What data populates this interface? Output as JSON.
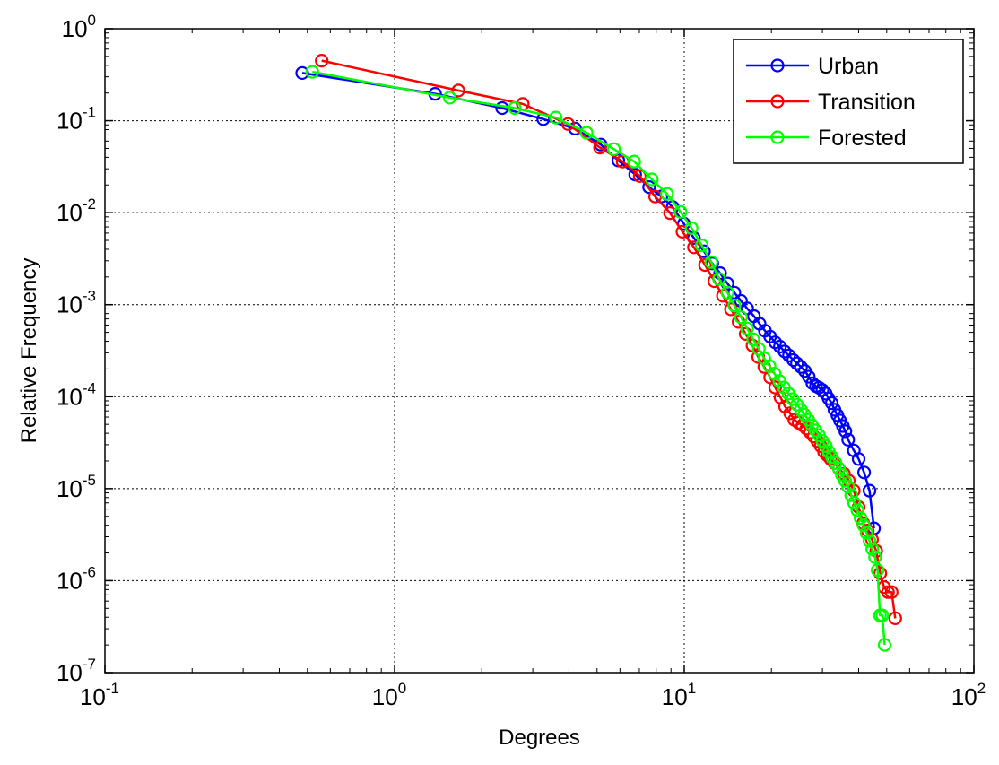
{
  "chart_data": {
    "type": "line",
    "xlabel": "Degrees",
    "ylabel": "Relative Frequency",
    "xscale": "log",
    "yscale": "log",
    "xlim": [
      0.1,
      100
    ],
    "ylim": [
      1e-07,
      1
    ],
    "grid": true,
    "legend_position": "top-right",
    "x_ticks": [
      {
        "base": "10",
        "exp": "-1",
        "value": 0.1
      },
      {
        "base": "10",
        "exp": "0",
        "value": 1
      },
      {
        "base": "10",
        "exp": "1",
        "value": 10
      },
      {
        "base": "10",
        "exp": "2",
        "value": 100
      }
    ],
    "y_ticks": [
      {
        "base": "10",
        "exp": "0",
        "value": 1
      },
      {
        "base": "10",
        "exp": "-1",
        "value": 0.1
      },
      {
        "base": "10",
        "exp": "-2",
        "value": 0.01
      },
      {
        "base": "10",
        "exp": "-3",
        "value": 0.001
      },
      {
        "base": "10",
        "exp": "-4",
        "value": 0.0001
      },
      {
        "base": "10",
        "exp": "-5",
        "value": 1e-05
      },
      {
        "base": "10",
        "exp": "-6",
        "value": 1e-06
      },
      {
        "base": "10",
        "exp": "-7",
        "value": 1e-07
      }
    ],
    "series": [
      {
        "name": "Urban",
        "color": "#0000ff",
        "x": [
          0.48,
          1.38,
          2.35,
          3.26,
          4.2,
          5.15,
          5.92,
          6.77,
          7.56,
          8.34,
          9.12,
          9.97,
          10.8,
          11.7,
          12.5,
          13.3,
          14.1,
          14.9,
          15.7,
          16.5,
          17.4,
          18.2,
          19.0,
          19.8,
          20.6,
          21.4,
          22.2,
          23.0,
          23.8,
          24.5,
          25.3,
          26.1,
          26.9,
          27.7,
          28.5,
          29.2,
          30.0,
          30.8,
          31.5,
          32.3,
          33.0,
          33.8,
          34.5,
          35.3,
          36.0,
          36.8,
          38.5,
          40.0,
          41.8,
          43.6,
          45.2
        ],
        "y": [
          0.33,
          0.196,
          0.137,
          0.104,
          0.082,
          0.055,
          0.037,
          0.026,
          0.019,
          0.015,
          0.0115,
          0.0076,
          0.0053,
          0.0038,
          0.0028,
          0.0022,
          0.0017,
          0.00135,
          0.0011,
          0.00091,
          0.00075,
          0.00062,
          0.00052,
          0.00045,
          0.00039,
          0.00035,
          0.00031,
          0.00028,
          0.00025,
          0.00023,
          0.00021,
          0.00019,
          0.000165,
          0.00014,
          0.00013,
          0.000125,
          0.000118,
          0.000108,
          9.55e-05,
          8.5e-05,
          7.2e-05,
          6.3e-05,
          5.5e-05,
          4.8e-05,
          4.2e-05,
          3.4e-05,
          2.6e-05,
          2.1e-05,
          1.5e-05,
          9.5e-06,
          3.7e-06
        ]
      },
      {
        "name": "Transition",
        "color": "#ff0000",
        "x": [
          0.56,
          1.66,
          2.77,
          3.97,
          5.12,
          6.13,
          7.02,
          7.93,
          8.93,
          9.86,
          10.8,
          11.8,
          12.7,
          13.6,
          14.5,
          15.4,
          16.3,
          17.2,
          18.0,
          18.9,
          19.8,
          20.6,
          21.5,
          22.3,
          23.2,
          24.0,
          24.8,
          25.6,
          26.4,
          27.2,
          28.0,
          28.8,
          29.6,
          30.4,
          31.2,
          32.0,
          33.0,
          34.2,
          35.6,
          37.0,
          38.5,
          40.0,
          41.5,
          43.0,
          44.5,
          46.0,
          47.5,
          49.0,
          50.5,
          52.0,
          53.5
        ],
        "y": [
          0.45,
          0.213,
          0.152,
          0.092,
          0.051,
          0.036,
          0.025,
          0.015,
          0.0099,
          0.0062,
          0.0042,
          0.0027,
          0.0018,
          0.00125,
          0.00089,
          0.00065,
          0.00048,
          0.00036,
          0.00027,
          0.00021,
          0.000162,
          0.000126,
          9.8e-05,
          7.8e-05,
          6.6e-05,
          5.6e-05,
          5.2e-05,
          4.9e-05,
          4.5e-05,
          4.1e-05,
          3.7e-05,
          3.3e-05,
          2.9e-05,
          2.5e-05,
          2.3e-05,
          2.1e-05,
          1.9e-05,
          1.65e-05,
          1.45e-05,
          1.22e-05,
          9.5e-06,
          6.3e-06,
          4.2e-06,
          3.5e-06,
          2.8e-06,
          2.1e-06,
          1.2e-06,
          8.5e-07,
          7.5e-07,
          7.5e-07,
          3.9e-07
        ]
      },
      {
        "name": "Forested",
        "color": "#00ff00",
        "x": [
          0.52,
          1.55,
          2.6,
          3.6,
          4.6,
          5.72,
          6.72,
          7.73,
          8.72,
          9.72,
          10.6,
          11.5,
          12.4,
          13.2,
          14.1,
          14.9,
          15.7,
          16.5,
          17.3,
          18.1,
          18.9,
          19.7,
          20.5,
          21.3,
          22.1,
          22.9,
          23.7,
          24.5,
          25.3,
          26.0,
          26.8,
          27.6,
          28.4,
          29.2,
          30.0,
          30.8,
          31.6,
          32.4,
          33.3,
          34.2,
          35.0,
          35.9,
          36.8,
          37.7,
          38.6,
          39.6,
          40.6,
          41.6,
          42.6,
          43.6,
          44.6,
          45.6,
          46.5,
          47.4,
          48.3,
          49.2
        ],
        "y": [
          0.34,
          0.178,
          0.137,
          0.108,
          0.074,
          0.049,
          0.036,
          0.023,
          0.016,
          0.0102,
          0.0068,
          0.0044,
          0.0029,
          0.0019,
          0.00135,
          0.00098,
          0.00073,
          0.00055,
          0.00042,
          0.00033,
          0.00026,
          0.000215,
          0.000178,
          0.000148,
          0.000126,
          0.000108,
          9.4e-05,
          8.2e-05,
          7.2e-05,
          6.4e-05,
          5.6e-05,
          4.9e-05,
          4.3e-05,
          3.8e-05,
          3.3e-05,
          2.9e-05,
          2.5e-05,
          2.2e-05,
          1.9e-05,
          1.65e-05,
          1.42e-05,
          1.22e-05,
          1.05e-05,
          8.5e-06,
          7e-06,
          5.8e-06,
          4.8e-06,
          4e-06,
          3.3e-06,
          2.7e-06,
          2.2e-06,
          1.8e-06,
          1.3e-06,
          4.2e-07,
          4.2e-07,
          2e-07
        ]
      }
    ]
  }
}
